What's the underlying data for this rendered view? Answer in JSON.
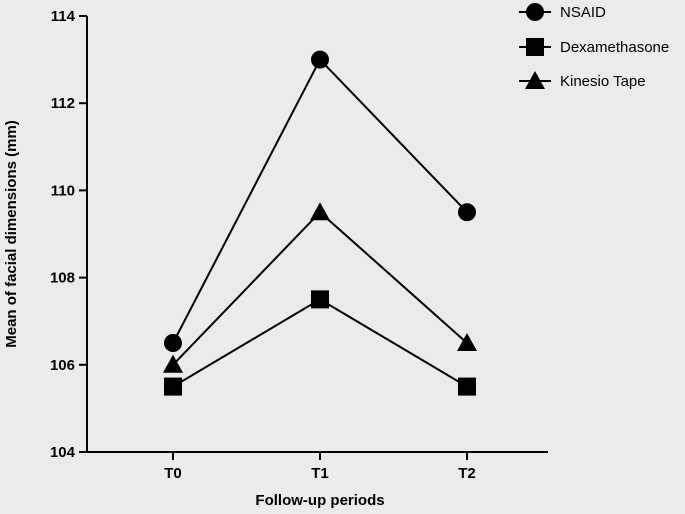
{
  "chart_data": {
    "type": "line",
    "title": "",
    "xlabel": "Follow-up periods",
    "ylabel": "Mean of facial dimensions (mm)",
    "categories": [
      "T0",
      "T1",
      "T2"
    ],
    "ylim": [
      104,
      114
    ],
    "yticks": [
      104,
      106,
      108,
      110,
      112,
      114
    ],
    "grid": false,
    "legend_position": "top-right",
    "series": [
      {
        "name": "NSAID",
        "marker": "circle",
        "color": "#000000",
        "values": [
          106.5,
          113.0,
          109.5
        ]
      },
      {
        "name": "Dexamethasone",
        "marker": "square",
        "color": "#000000",
        "values": [
          105.5,
          107.5,
          105.5
        ]
      },
      {
        "name": "Kinesio Tape",
        "marker": "triangle",
        "color": "#000000",
        "values": [
          106.0,
          109.5,
          106.5
        ]
      }
    ]
  }
}
